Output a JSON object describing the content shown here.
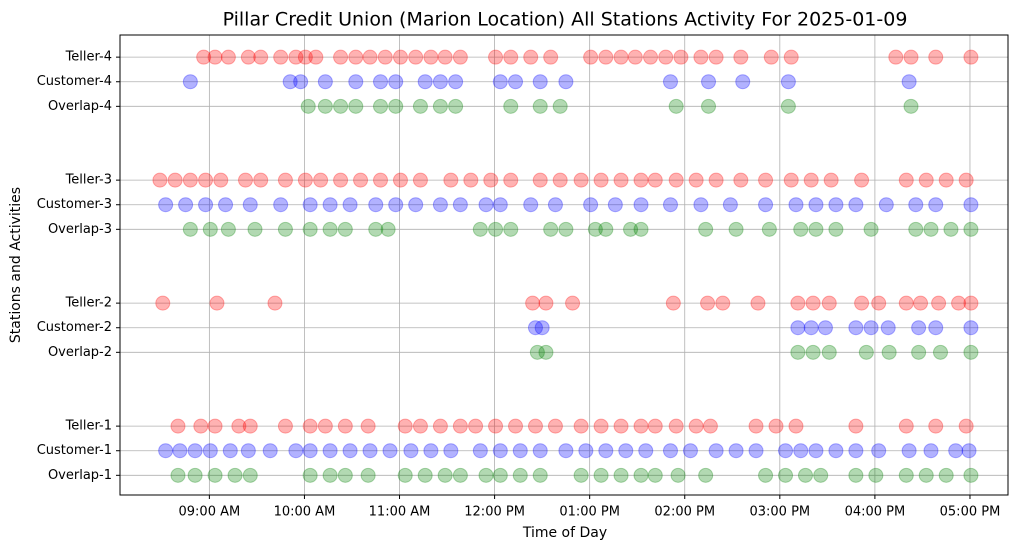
{
  "chart_data": {
    "type": "scatter",
    "title": "Pillar Credit Union (Marion Location) All Stations Activity For 2025-01-09",
    "x_label": "Time of Day",
    "y_label": "Stations and Activities",
    "xlim": [
      8.06,
      17.4
    ],
    "ylim": [
      -0.8,
      17.9
    ],
    "grid": true,
    "opacity": 0.3,
    "xticks": [
      {
        "value": 9,
        "label": "09:00 AM"
      },
      {
        "value": 10,
        "label": "10:00 AM"
      },
      {
        "value": 11,
        "label": "11:00 AM"
      },
      {
        "value": 12,
        "label": "12:00 PM"
      },
      {
        "value": 13,
        "label": "01:00 PM"
      },
      {
        "value": 14,
        "label": "02:00 PM"
      },
      {
        "value": 15,
        "label": "03:00 PM"
      },
      {
        "value": 16,
        "label": "04:00 PM"
      },
      {
        "value": 17,
        "label": "05:00 PM"
      }
    ],
    "yticks": [
      {
        "value": 0,
        "label": "Overlap-1"
      },
      {
        "value": 1,
        "label": "Customer-1"
      },
      {
        "value": 2,
        "label": "Teller-1"
      },
      {
        "value": 5,
        "label": "Overlap-2"
      },
      {
        "value": 6,
        "label": "Customer-2"
      },
      {
        "value": 7,
        "label": "Teller-2"
      },
      {
        "value": 10,
        "label": "Overlap-3"
      },
      {
        "value": 11,
        "label": "Customer-3"
      },
      {
        "value": 12,
        "label": "Teller-3"
      },
      {
        "value": 15,
        "label": "Overlap-4"
      },
      {
        "value": 16,
        "label": "Customer-4"
      },
      {
        "value": 17,
        "label": "Teller-4"
      }
    ],
    "series": [
      {
        "color": "#008000",
        "y": 0,
        "x": [
          8.67,
          8.85,
          9.06,
          9.27,
          9.43,
          10.06,
          10.27,
          10.43,
          10.67,
          11.06,
          11.27,
          11.48,
          11.64,
          11.91,
          12.06,
          12.27,
          12.48,
          12.91,
          13.12,
          13.33,
          13.54,
          13.69,
          13.93,
          14.22,
          14.85,
          15.06,
          15.27,
          15.43,
          15.8,
          16.01,
          16.33,
          16.54,
          16.75,
          17.01
        ]
      },
      {
        "color": "#0000ff",
        "y": 1,
        "x": [
          8.54,
          8.69,
          8.85,
          9.01,
          9.22,
          9.41,
          9.64,
          9.91,
          10.06,
          10.27,
          10.48,
          10.69,
          10.9,
          11.12,
          11.33,
          11.54,
          11.85,
          12.06,
          12.27,
          12.48,
          12.75,
          12.96,
          13.17,
          13.38,
          13.59,
          13.85,
          14.06,
          14.33,
          14.54,
          14.75,
          15.06,
          15.22,
          15.38,
          15.59,
          15.8,
          16.04,
          16.36,
          16.59,
          16.85,
          16.99
        ]
      },
      {
        "color": "#ff0000",
        "y": 2,
        "x": [
          8.67,
          8.91,
          9.06,
          9.31,
          9.43,
          9.8,
          10.06,
          10.22,
          10.43,
          10.67,
          11.06,
          11.22,
          11.43,
          11.64,
          11.8,
          12.01,
          12.22,
          12.43,
          12.64,
          12.91,
          13.12,
          13.33,
          13.54,
          13.69,
          13.91,
          14.12,
          14.27,
          14.75,
          14.96,
          15.17,
          15.8,
          16.33,
          16.64,
          16.96
        ]
      },
      {
        "color": "#008000",
        "y": 5,
        "x": [
          12.45,
          12.54,
          15.19,
          15.35,
          15.52,
          15.91,
          16.15,
          16.46,
          16.69,
          17.01
        ]
      },
      {
        "color": "#0000ff",
        "y": 6,
        "x": [
          12.43,
          12.5,
          15.19,
          15.33,
          15.48,
          15.8,
          15.96,
          16.14,
          16.46,
          16.64,
          17.01
        ]
      },
      {
        "color": "#ff0000",
        "y": 7,
        "x": [
          8.51,
          9.08,
          9.69,
          12.4,
          12.54,
          12.82,
          13.88,
          14.24,
          14.4,
          14.77,
          15.19,
          15.35,
          15.52,
          15.86,
          16.04,
          16.33,
          16.48,
          16.67,
          16.88,
          17.01
        ]
      },
      {
        "color": "#008000",
        "y": 10,
        "x": [
          8.8,
          9.01,
          9.2,
          9.48,
          9.8,
          10.06,
          10.27,
          10.43,
          10.75,
          10.88,
          11.85,
          12.01,
          12.17,
          12.59,
          12.75,
          13.06,
          13.17,
          13.43,
          13.54,
          14.22,
          14.54,
          14.89,
          15.22,
          15.38,
          15.59,
          15.96,
          16.43,
          16.59,
          16.8,
          17.01
        ]
      },
      {
        "color": "#0000ff",
        "y": 11,
        "x": [
          8.54,
          8.75,
          8.96,
          9.17,
          9.43,
          9.75,
          10.06,
          10.27,
          10.48,
          10.75,
          10.96,
          11.17,
          11.43,
          11.64,
          11.91,
          12.06,
          12.38,
          12.64,
          13.01,
          13.27,
          13.54,
          13.85,
          14.17,
          14.48,
          14.85,
          15.17,
          15.38,
          15.59,
          15.8,
          16.12,
          16.43,
          16.64,
          17.01
        ]
      },
      {
        "color": "#ff0000",
        "y": 12,
        "x": [
          8.48,
          8.64,
          8.8,
          8.96,
          9.12,
          9.38,
          9.54,
          9.8,
          10.01,
          10.17,
          10.38,
          10.59,
          10.8,
          11.01,
          11.22,
          11.54,
          11.75,
          11.96,
          12.17,
          12.48,
          12.69,
          12.91,
          13.12,
          13.33,
          13.54,
          13.69,
          13.91,
          14.12,
          14.33,
          14.59,
          14.85,
          15.12,
          15.33,
          15.54,
          15.86,
          16.33,
          16.54,
          16.75,
          16.96
        ]
      },
      {
        "color": "#008000",
        "y": 15,
        "x": [
          10.04,
          10.22,
          10.38,
          10.54,
          10.8,
          10.96,
          11.22,
          11.43,
          11.59,
          12.17,
          12.48,
          12.69,
          13.91,
          14.25,
          15.09,
          16.38
        ]
      },
      {
        "color": "#0000ff",
        "y": 16,
        "x": [
          8.8,
          9.85,
          9.96,
          10.22,
          10.54,
          10.8,
          10.96,
          11.27,
          11.43,
          11.59,
          12.06,
          12.22,
          12.48,
          12.75,
          13.85,
          14.25,
          14.61,
          15.09,
          16.36
        ]
      },
      {
        "color": "#ff0000",
        "y": 17,
        "x": [
          8.94,
          9.06,
          9.2,
          9.41,
          9.54,
          9.75,
          9.91,
          10.01,
          10.12,
          10.38,
          10.54,
          10.69,
          10.85,
          11.01,
          11.17,
          11.33,
          11.48,
          11.64,
          12.01,
          12.17,
          12.38,
          12.59,
          13.01,
          13.17,
          13.33,
          13.48,
          13.64,
          13.8,
          13.96,
          14.17,
          14.33,
          14.59,
          14.91,
          15.12,
          16.22,
          16.38,
          16.64,
          17.01
        ]
      }
    ]
  }
}
